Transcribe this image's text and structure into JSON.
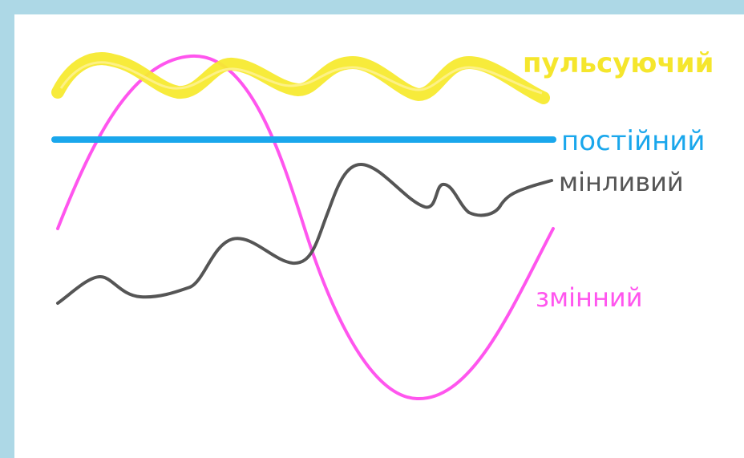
{
  "diagram": {
    "series": [
      {
        "key": "pulsating",
        "label": "пульсуючий",
        "color": "#f5e62c"
      },
      {
        "key": "constant",
        "label": "постійний",
        "color": "#1aa7ec"
      },
      {
        "key": "variable",
        "label": "мінливий",
        "color": "#555555"
      },
      {
        "key": "alternating",
        "label": "змінний",
        "color": "#ff55ee"
      }
    ]
  }
}
